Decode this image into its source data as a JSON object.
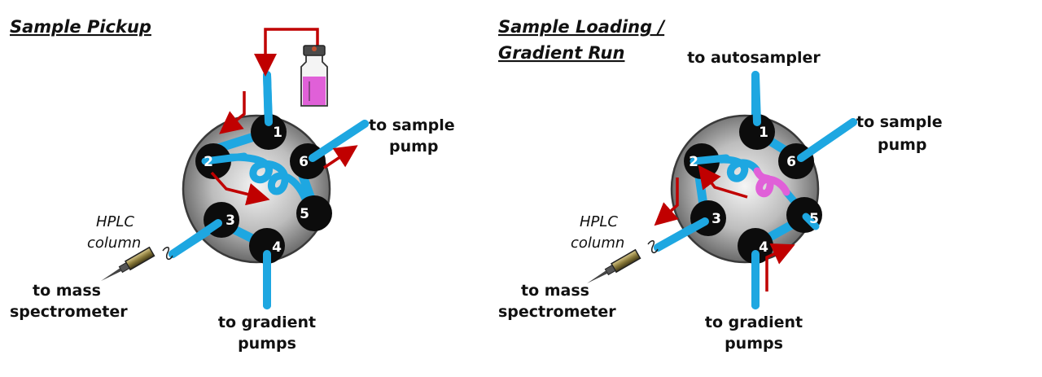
{
  "left_panel": {
    "title": "Sample Pickup",
    "labels": {
      "to_sample_pump": [
        "to sample",
        "pump"
      ],
      "hplc_column": [
        "HPLC",
        "column"
      ],
      "to_mass_spec": [
        "to mass",
        "spectrometer"
      ],
      "to_gradient_pumps": [
        "to gradient",
        "pumps"
      ]
    }
  },
  "right_panel": {
    "title": [
      "Sample Loading /",
      "Gradient Run"
    ],
    "labels": {
      "to_autosampler": "to autosampler",
      "to_sample_pump": [
        "to sample",
        "pump"
      ],
      "hplc_column": [
        "HPLC",
        "column"
      ],
      "to_mass_spec": [
        "to mass",
        "spectrometer"
      ],
      "to_gradient_pumps": [
        "to gradient",
        "pumps"
      ]
    }
  },
  "ports": [
    "1",
    "2",
    "3",
    "4",
    "5",
    "6"
  ],
  "colors": {
    "tube": "#1ea7e1",
    "sample": "#e060d8",
    "flow_arrow": "#c00000",
    "port": "#0c0c0c"
  }
}
